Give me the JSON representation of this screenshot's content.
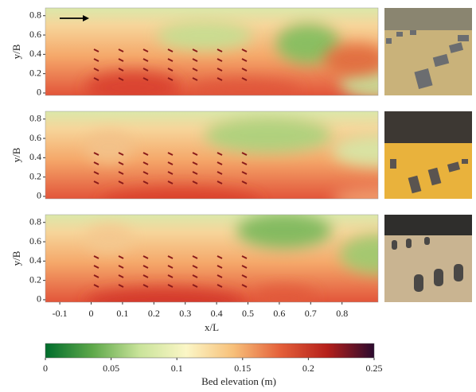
{
  "chart_data": [
    {
      "type": "heatmap",
      "ylabel": "y/B",
      "ylim": [
        -0.025,
        0.88
      ],
      "yticks": [
        0,
        0.2,
        0.4,
        0.6,
        0.8
      ]
    },
    {
      "type": "heatmap",
      "ylabel": "y/B",
      "ylim": [
        -0.025,
        0.88
      ],
      "yticks": [
        0,
        0.2,
        0.4,
        0.6,
        0.8
      ]
    },
    {
      "type": "heatmap",
      "ylabel": "y/B",
      "ylim": [
        -0.025,
        0.88
      ],
      "yticks": [
        0,
        0.2,
        0.4,
        0.6,
        0.8
      ],
      "xlabel": "x/L",
      "xlim": [
        -0.146,
        0.915
      ],
      "xticks": [
        -0.1,
        0,
        0.1,
        0.2,
        0.3,
        0.4,
        0.5,
        0.6,
        0.7,
        0.8
      ]
    }
  ],
  "colorbar": {
    "label": "Bed elevation (m)",
    "lim": [
      0,
      0.25
    ],
    "ticks": [
      0,
      0.05,
      0.1,
      0.15,
      0.2,
      0.25
    ],
    "colors": [
      "#006d2c",
      "#5ea84a",
      "#c9e39a",
      "#fbf6c6",
      "#f7c07a",
      "#e4603a",
      "#b5201b",
      "#2b0a2e"
    ]
  }
}
